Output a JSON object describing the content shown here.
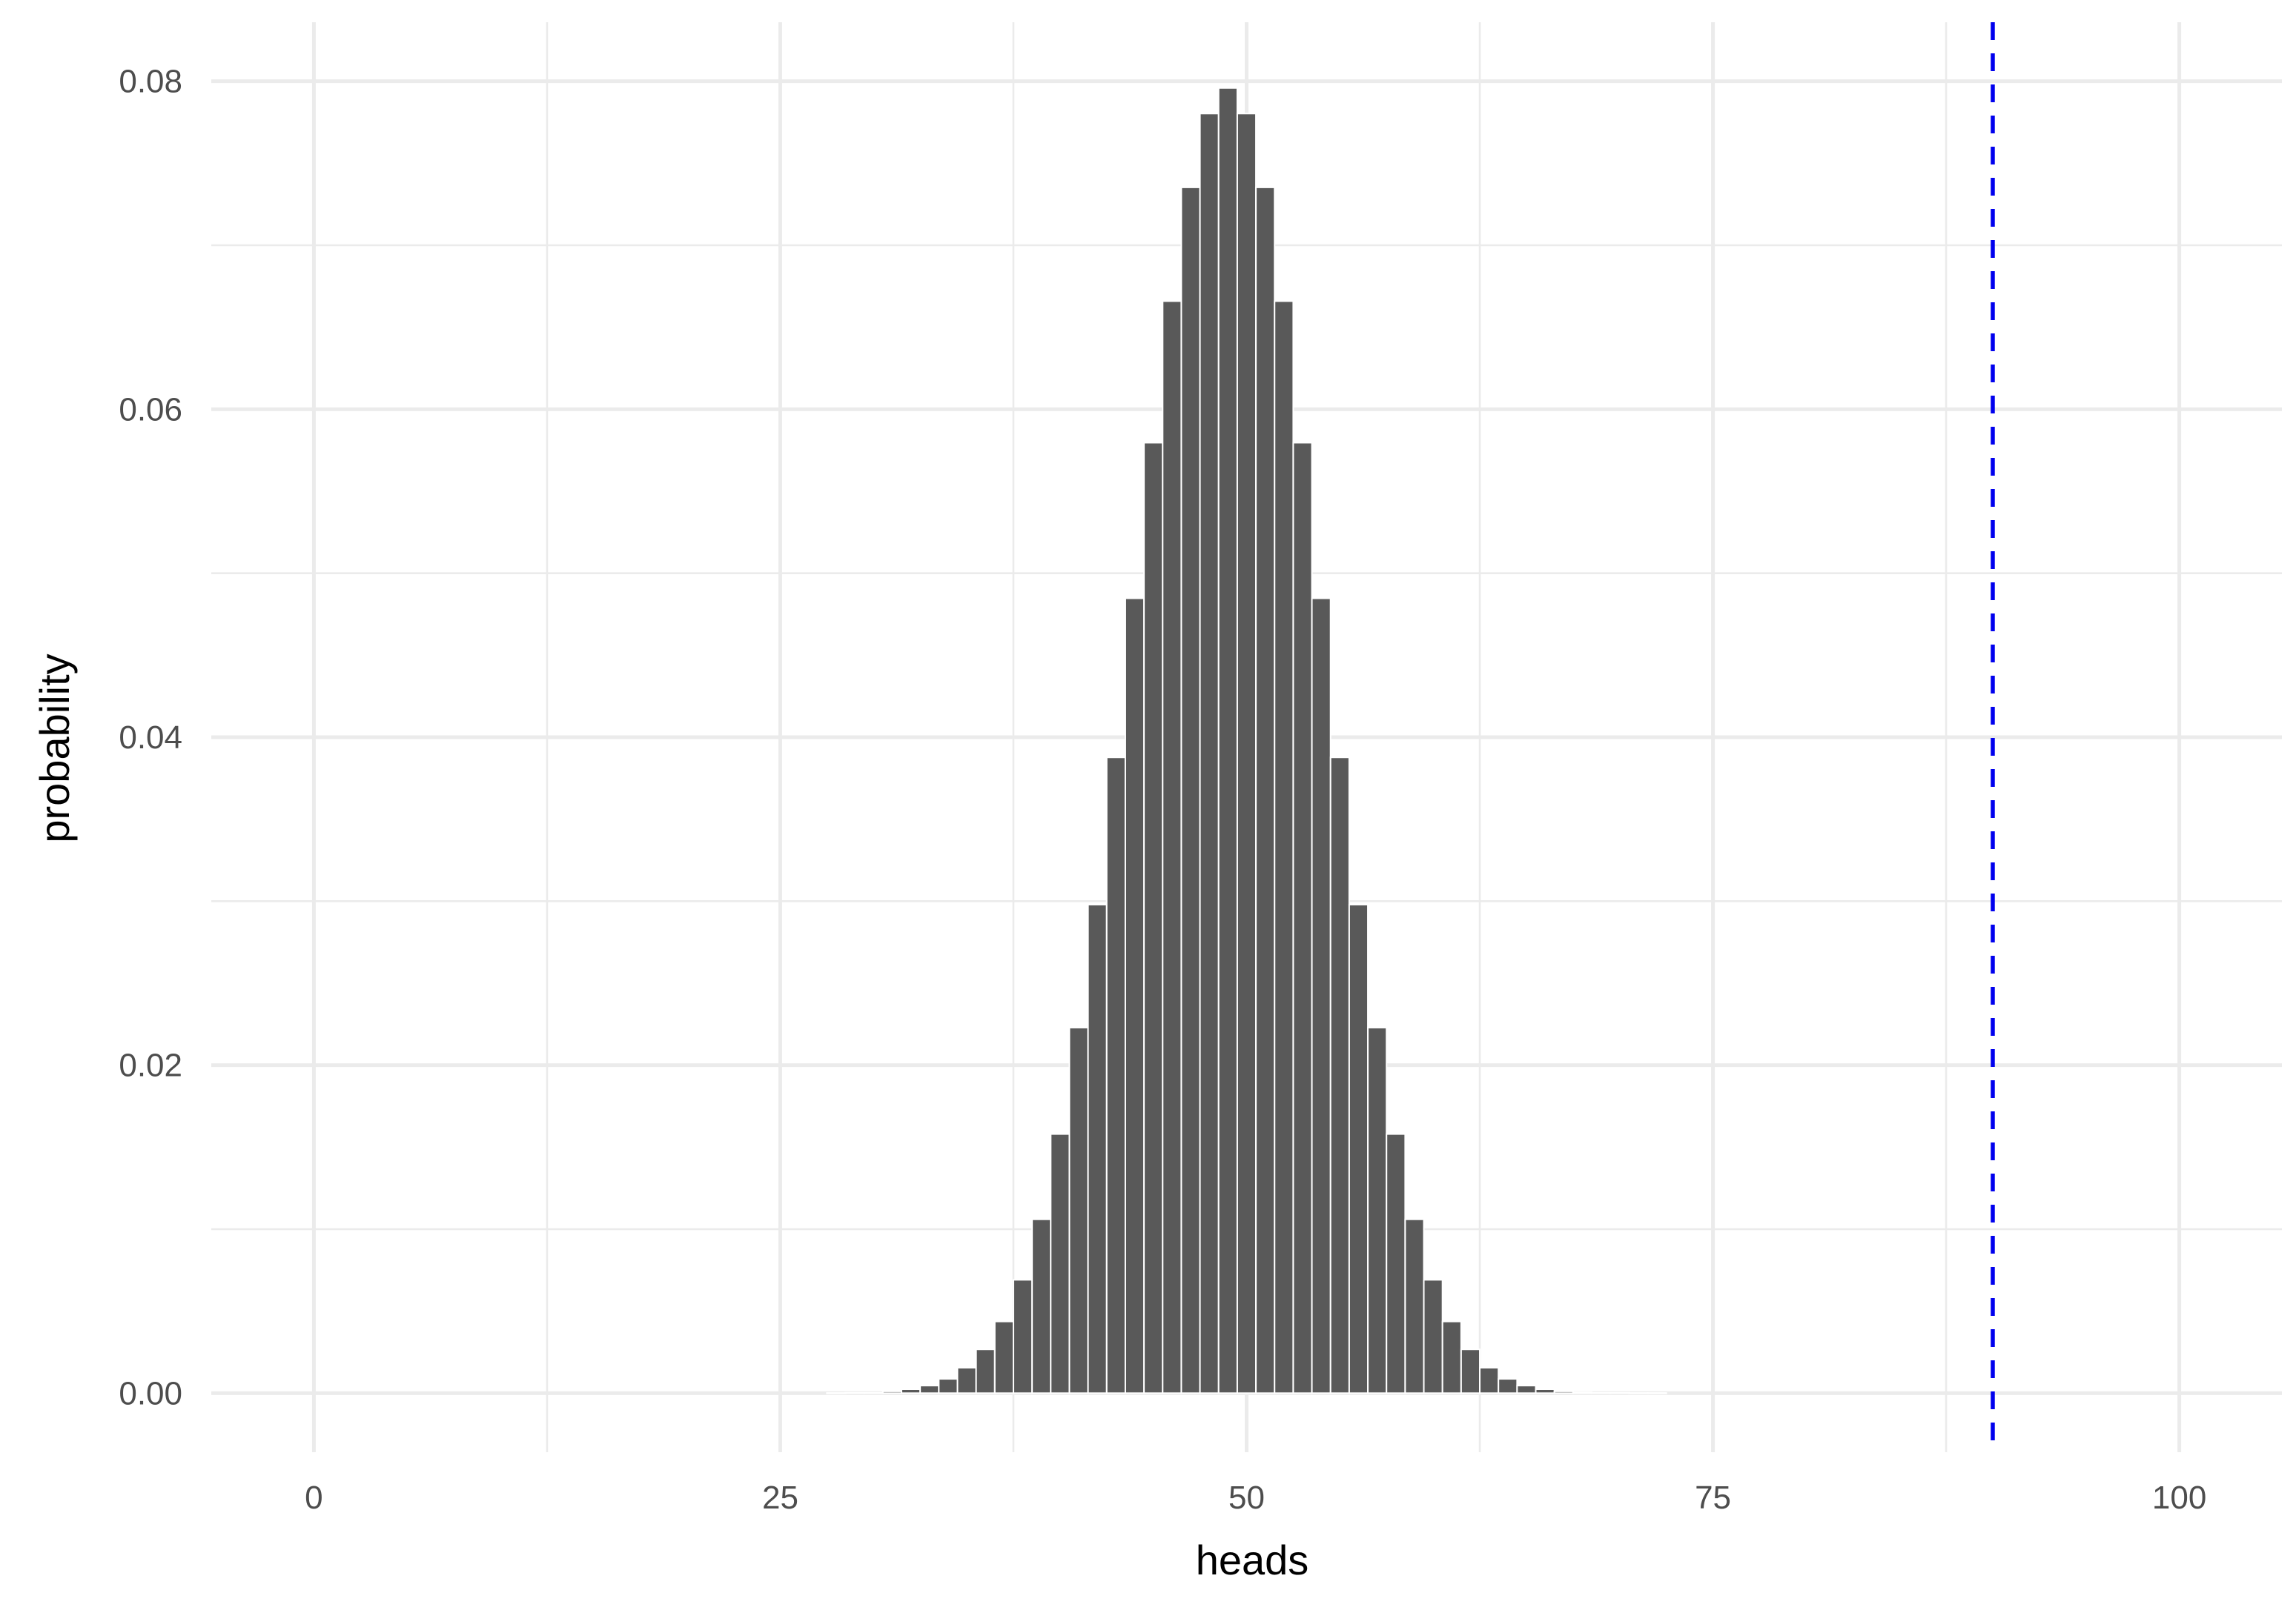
{
  "chart_data": {
    "type": "bar",
    "title": "",
    "xlabel": "heads",
    "ylabel": "probability",
    "xlim": [
      -5.5,
      105.5
    ],
    "ylim": [
      -0.0036,
      0.0836
    ],
    "x_ticks": [
      0,
      25,
      50,
      75,
      100
    ],
    "y_ticks": [
      0.0,
      0.02,
      0.04,
      0.06,
      0.08
    ],
    "x_tick_labels": [
      "0",
      "25",
      "50",
      "75",
      "100"
    ],
    "y_tick_labels": [
      "0.00",
      "0.02",
      "0.04",
      "0.06",
      "0.08"
    ],
    "grid": true,
    "legend": "none",
    "bar_color": "#595959",
    "bar_outline": "#ffffff",
    "reference_line": {
      "x": 90,
      "color": "#0000ee",
      "style": "dashed"
    },
    "x": [
      28,
      29,
      30,
      31,
      32,
      33,
      34,
      35,
      36,
      37,
      38,
      39,
      40,
      41,
      42,
      43,
      44,
      45,
      46,
      47,
      48,
      49,
      50,
      51,
      52,
      53,
      54,
      55,
      56,
      57,
      58,
      59,
      60,
      61,
      62,
      63,
      64,
      65,
      66,
      67,
      68,
      69,
      70,
      71,
      72
    ],
    "values": [
      1e-05,
      2e-05,
      2e-05,
      0.00011,
      0.00024,
      0.00046,
      0.00087,
      0.00155,
      0.00267,
      0.00437,
      0.00691,
      0.0106,
      0.0158,
      0.02229,
      0.02979,
      0.03877,
      0.04847,
      0.05796,
      0.06659,
      0.07353,
      0.07803,
      0.07959,
      0.07803,
      0.07353,
      0.06659,
      0.05796,
      0.04847,
      0.03877,
      0.02979,
      0.02229,
      0.0158,
      0.0106,
      0.00691,
      0.00437,
      0.00267,
      0.00155,
      0.00087,
      0.00046,
      0.00024,
      0.00011,
      5e-05,
      2e-05,
      2e-05,
      1e-05,
      1e-05
    ]
  }
}
